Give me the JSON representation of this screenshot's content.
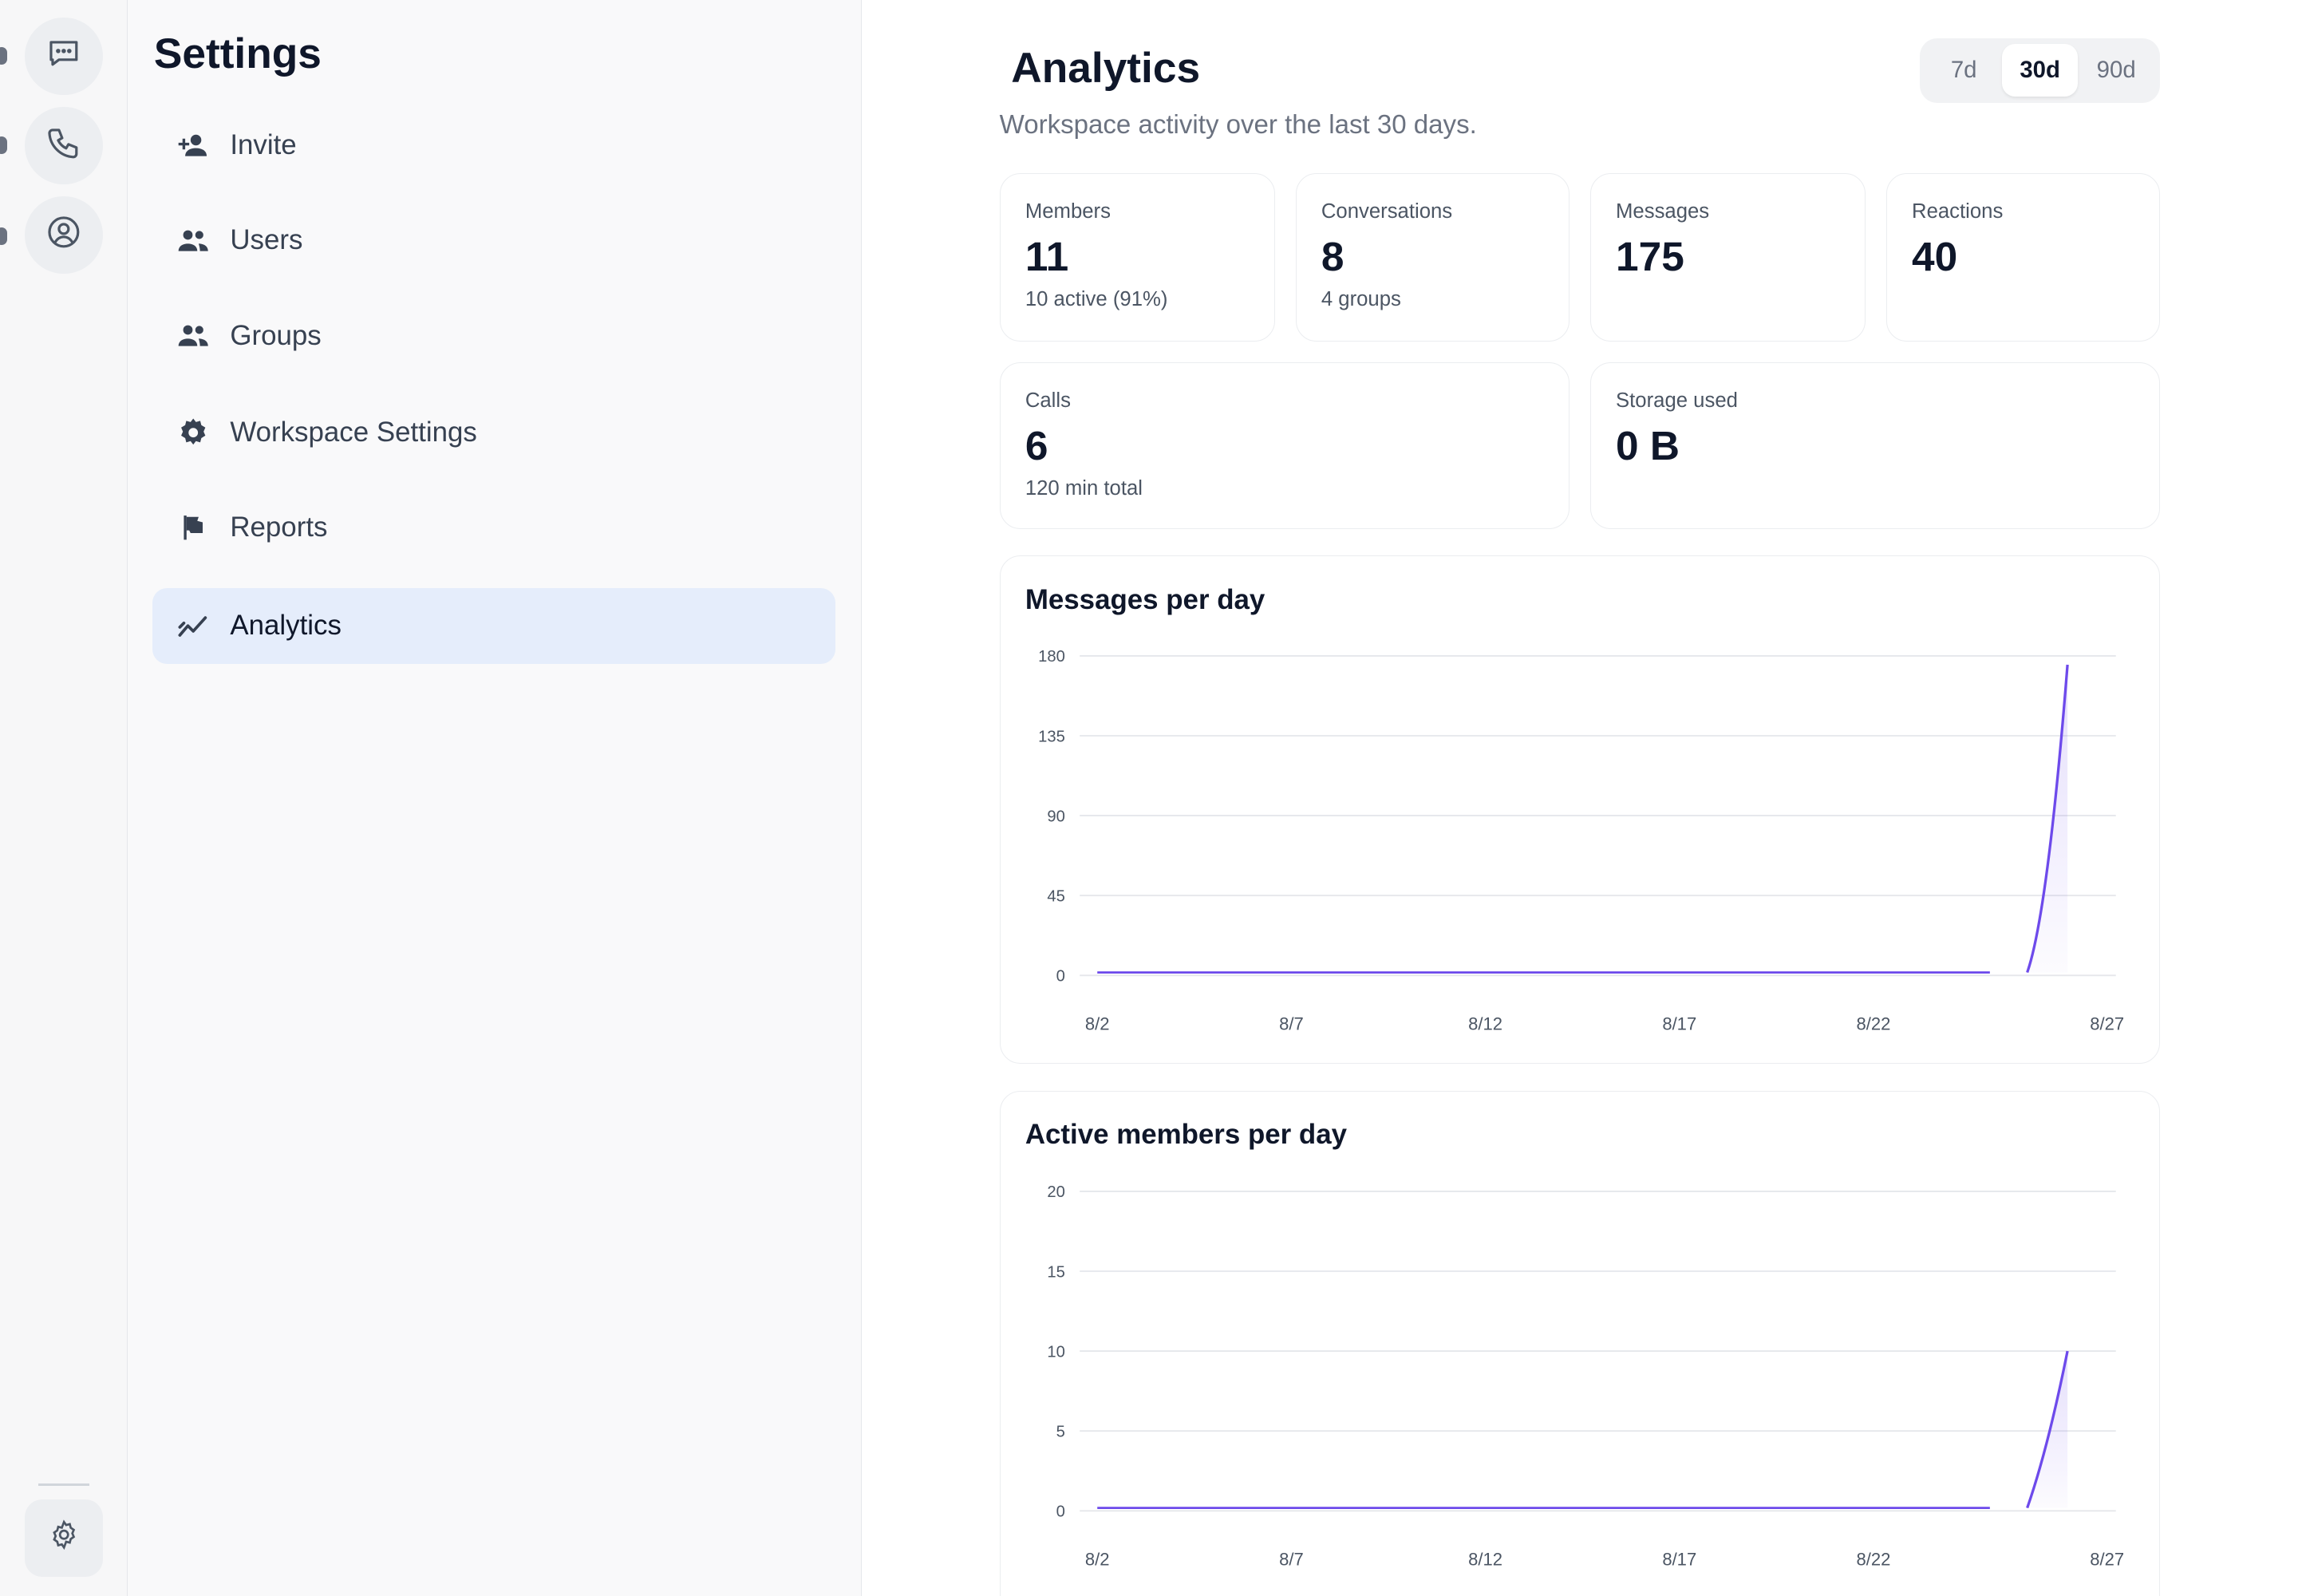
{
  "rail": {
    "items": [
      {
        "icon": "chat-icon"
      },
      {
        "icon": "phone-icon"
      },
      {
        "icon": "user-circle-icon"
      }
    ],
    "bottom_icon": "gear-icon"
  },
  "settings": {
    "title": "Settings",
    "items": [
      {
        "label": "Invite",
        "icon": "user-plus-icon"
      },
      {
        "label": "Users",
        "icon": "users-icon"
      },
      {
        "label": "Groups",
        "icon": "groups-icon"
      },
      {
        "label": "Workspace Settings",
        "icon": "gear-icon"
      },
      {
        "label": "Reports",
        "icon": "flag-icon"
      },
      {
        "label": "Analytics",
        "icon": "analytics-icon",
        "active": true
      }
    ]
  },
  "main": {
    "title": "Analytics",
    "subtitle": "Workspace activity over the last 30 days.",
    "ranges": [
      "7d",
      "30d",
      "90d"
    ],
    "selected_range": "30d",
    "stats": [
      {
        "label": "Members",
        "value": "11",
        "sub": "10 active (91%)"
      },
      {
        "label": "Conversations",
        "value": "8",
        "sub": "4 groups"
      },
      {
        "label": "Messages",
        "value": "175",
        "sub": ""
      },
      {
        "label": "Reactions",
        "value": "40",
        "sub": ""
      },
      {
        "label": "Calls",
        "value": "6",
        "sub": "120 min total"
      },
      {
        "label": "Storage used",
        "value": "0 B",
        "sub": ""
      }
    ]
  },
  "chart_data": [
    {
      "type": "area",
      "title": "Messages per day",
      "xlabel": "",
      "ylabel": "",
      "ylim": [
        0,
        180
      ],
      "yticks": [
        0,
        45,
        90,
        135,
        180
      ],
      "xticks": [
        "8/2",
        "8/7",
        "8/12",
        "8/17",
        "8/22",
        "8/27"
      ],
      "x": [
        "8/2",
        "8/3",
        "8/4",
        "8/5",
        "8/6",
        "8/7",
        "8/8",
        "8/9",
        "8/10",
        "8/11",
        "8/12",
        "8/13",
        "8/14",
        "8/15",
        "8/16",
        "8/17",
        "8/18",
        "8/19",
        "8/20",
        "8/21",
        "8/22",
        "8/23",
        "8/24",
        "8/25",
        "8/26",
        "8/27"
      ],
      "values": [
        0,
        0,
        0,
        0,
        0,
        0,
        0,
        0,
        0,
        0,
        0,
        0,
        0,
        0,
        0,
        0,
        0,
        0,
        0,
        0,
        0,
        0,
        0,
        0,
        0,
        175
      ],
      "grid": true,
      "color": "#6d4aeb"
    },
    {
      "type": "area",
      "title": "Active members per day",
      "xlabel": "",
      "ylabel": "",
      "ylim": [
        0,
        20
      ],
      "yticks": [
        0,
        5,
        10,
        15,
        20
      ],
      "xticks": [
        "8/2",
        "8/7",
        "8/12",
        "8/17",
        "8/22",
        "8/27"
      ],
      "x": [
        "8/2",
        "8/3",
        "8/4",
        "8/5",
        "8/6",
        "8/7",
        "8/8",
        "8/9",
        "8/10",
        "8/11",
        "8/12",
        "8/13",
        "8/14",
        "8/15",
        "8/16",
        "8/17",
        "8/18",
        "8/19",
        "8/20",
        "8/21",
        "8/22",
        "8/23",
        "8/24",
        "8/25",
        "8/26",
        "8/27"
      ],
      "values": [
        0,
        0,
        0,
        0,
        0,
        0,
        0,
        0,
        0,
        0,
        0,
        0,
        0,
        0,
        0,
        0,
        0,
        0,
        0,
        0,
        0,
        0,
        0,
        0,
        0,
        10
      ],
      "grid": true,
      "color": "#6d4aeb"
    }
  ]
}
